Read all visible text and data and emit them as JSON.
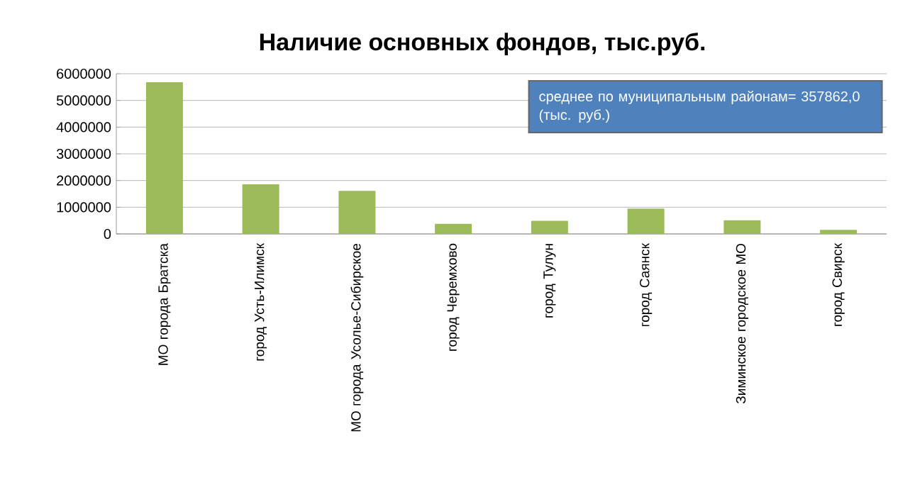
{
  "chart_data": {
    "type": "bar",
    "title": "Наличие основных  фондов, тыс.руб.",
    "categories": [
      "МО города Братска",
      "город Усть-Илимск",
      "МО города Усолье-Сибирское",
      "город Черемхово",
      "город Тулун",
      "город Саянск",
      "Зиминское городское МО",
      "город Свирск"
    ],
    "values": [
      5680000,
      1860000,
      1610000,
      376000,
      490000,
      950000,
      510000,
      155000
    ],
    "color": "#9bbb59",
    "ylim": [
      0,
      6000000
    ],
    "yticks": [
      0,
      1000000,
      2000000,
      3000000,
      4000000,
      5000000,
      6000000
    ],
    "grid": "y",
    "annotations": [
      "среднее по муниципальным районам= 357862,0 (тыс. руб.)"
    ]
  }
}
